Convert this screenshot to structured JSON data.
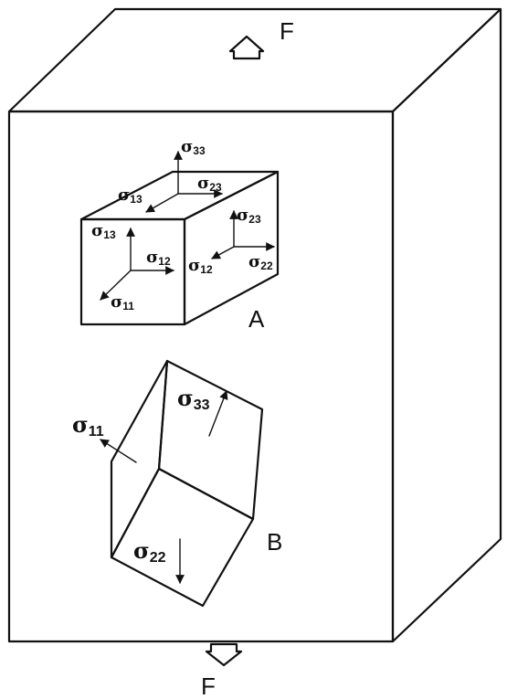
{
  "figure": {
    "force_top_label": "F",
    "force_bottom_label": "F",
    "element_a_label": "A",
    "element_b_label": "B"
  },
  "element_a": {
    "stress_symbol": "σ",
    "top_face": {
      "normal_sub": "33",
      "shear_13_sub": "13",
      "shear_23_sub": "23"
    },
    "front_face": {
      "shear_13_sub": "13",
      "shear_12_sub": "12",
      "normal_sub": "11"
    },
    "right_face": {
      "shear_23_sub": "23",
      "shear_12_sub": "12",
      "normal_sub": "22"
    }
  },
  "element_b": {
    "stress_symbol": "σ",
    "normal_11_sub": "11",
    "normal_33_sub": "33",
    "normal_22_sub": "22"
  }
}
